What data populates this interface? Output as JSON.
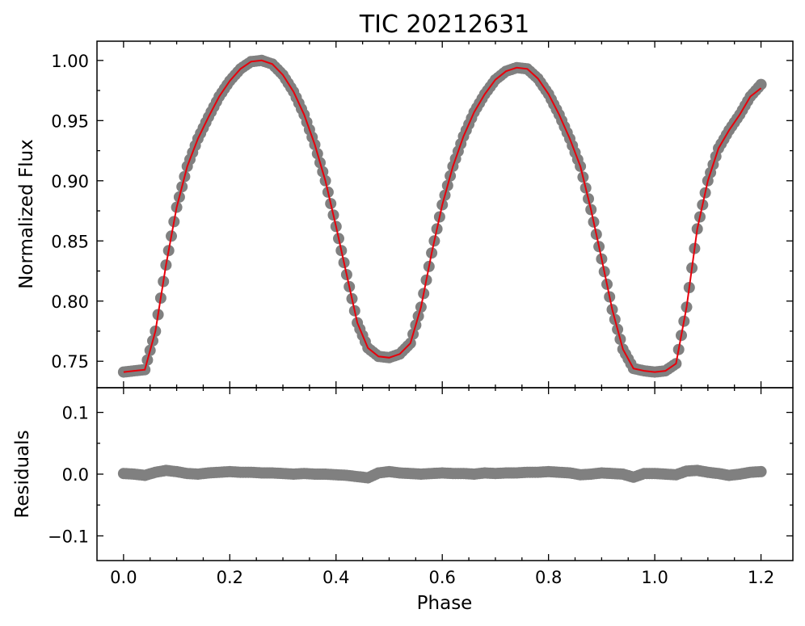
{
  "chart_data": [
    {
      "type": "scatter",
      "panel": "flux",
      "title": "TIC 20212631",
      "xlabel": "",
      "ylabel": "Normalized Flux",
      "xlim": [
        -0.05,
        1.26
      ],
      "ylim": [
        0.728,
        1.016
      ],
      "xticks": [
        0.0,
        0.2,
        0.4,
        0.6,
        0.8,
        1.0,
        1.2
      ],
      "xtick_labels": [
        "",
        "",
        "",
        "",
        "",
        "",
        ""
      ],
      "yticks": [
        0.75,
        0.8,
        0.85,
        0.9,
        0.95,
        1.0
      ],
      "ytick_labels": [
        "0.75",
        "0.80",
        "0.85",
        "0.90",
        "0.95",
        "1.00"
      ],
      "grid": false,
      "series": [
        {
          "kind": "scatter",
          "color": "#808080",
          "x": [
            0.0,
            0.02,
            0.04,
            0.06,
            0.08,
            0.1,
            0.12,
            0.14,
            0.16,
            0.18,
            0.2,
            0.22,
            0.24,
            0.26,
            0.28,
            0.3,
            0.32,
            0.34,
            0.36,
            0.38,
            0.4,
            0.42,
            0.44,
            0.46,
            0.48,
            0.5,
            0.52,
            0.54,
            0.56,
            0.58,
            0.6,
            0.62,
            0.64,
            0.66,
            0.68,
            0.7,
            0.72,
            0.74,
            0.76,
            0.78,
            0.8,
            0.82,
            0.84,
            0.86,
            0.88,
            0.9,
            0.92,
            0.94,
            0.96,
            0.98,
            1.0,
            1.02,
            1.04,
            1.06,
            1.08,
            1.1,
            1.12,
            1.14,
            1.16,
            1.18,
            1.2
          ],
          "y": [
            0.741,
            0.742,
            0.743,
            0.775,
            0.83,
            0.878,
            0.912,
            0.935,
            0.953,
            0.97,
            0.983,
            0.993,
            0.999,
            1.0,
            0.997,
            0.988,
            0.974,
            0.955,
            0.93,
            0.9,
            0.862,
            0.822,
            0.782,
            0.761,
            0.754,
            0.753,
            0.756,
            0.765,
            0.795,
            0.84,
            0.88,
            0.912,
            0.937,
            0.957,
            0.972,
            0.984,
            0.991,
            0.994,
            0.993,
            0.985,
            0.972,
            0.955,
            0.935,
            0.912,
            0.876,
            0.835,
            0.793,
            0.76,
            0.744,
            0.742,
            0.741,
            0.742,
            0.748,
            0.795,
            0.86,
            0.9,
            0.927,
            0.942,
            0.955,
            0.97,
            0.98
          ]
        },
        {
          "kind": "line",
          "color": "#e8000b",
          "x": [
            0.0,
            0.02,
            0.04,
            0.06,
            0.08,
            0.1,
            0.12,
            0.14,
            0.16,
            0.18,
            0.2,
            0.22,
            0.24,
            0.26,
            0.28,
            0.3,
            0.32,
            0.34,
            0.36,
            0.38,
            0.4,
            0.42,
            0.44,
            0.46,
            0.48,
            0.5,
            0.52,
            0.54,
            0.56,
            0.58,
            0.6,
            0.62,
            0.64,
            0.66,
            0.68,
            0.7,
            0.72,
            0.74,
            0.76,
            0.78,
            0.8,
            0.82,
            0.84,
            0.86,
            0.88,
            0.9,
            0.92,
            0.94,
            0.96,
            0.98,
            1.0,
            1.02,
            1.04,
            1.06,
            1.08,
            1.1,
            1.12,
            1.14,
            1.16,
            1.18,
            1.2
          ],
          "y": [
            0.741,
            0.742,
            0.743,
            0.775,
            0.83,
            0.878,
            0.912,
            0.935,
            0.953,
            0.97,
            0.983,
            0.993,
            0.999,
            1.0,
            0.997,
            0.988,
            0.974,
            0.955,
            0.93,
            0.9,
            0.862,
            0.822,
            0.782,
            0.761,
            0.754,
            0.753,
            0.756,
            0.765,
            0.795,
            0.84,
            0.88,
            0.912,
            0.937,
            0.957,
            0.972,
            0.984,
            0.991,
            0.994,
            0.993,
            0.985,
            0.972,
            0.955,
            0.935,
            0.912,
            0.876,
            0.835,
            0.793,
            0.76,
            0.744,
            0.742,
            0.741,
            0.742,
            0.748,
            0.795,
            0.86,
            0.9,
            0.927,
            0.942,
            0.955,
            0.97,
            0.977
          ]
        }
      ]
    },
    {
      "type": "scatter",
      "panel": "residuals",
      "title": "",
      "xlabel": "Phase",
      "ylabel": "Residuals",
      "xlim": [
        -0.05,
        1.26
      ],
      "ylim": [
        -0.14,
        0.14
      ],
      "xticks": [
        0.0,
        0.2,
        0.4,
        0.6,
        0.8,
        1.0,
        1.2
      ],
      "xtick_labels": [
        "0.0",
        "0.2",
        "0.4",
        "0.6",
        "0.8",
        "1.0",
        "1.2"
      ],
      "yticks": [
        -0.1,
        0.0,
        0.1
      ],
      "ytick_labels": [
        "−0.1",
        "0.0",
        "0.1"
      ],
      "grid": false,
      "series": [
        {
          "kind": "scatter",
          "color": "#808080",
          "x": [
            0.0,
            0.02,
            0.04,
            0.06,
            0.08,
            0.1,
            0.12,
            0.14,
            0.16,
            0.18,
            0.2,
            0.22,
            0.24,
            0.26,
            0.28,
            0.3,
            0.32,
            0.34,
            0.36,
            0.38,
            0.4,
            0.42,
            0.44,
            0.46,
            0.48,
            0.5,
            0.52,
            0.54,
            0.56,
            0.58,
            0.6,
            0.62,
            0.64,
            0.66,
            0.68,
            0.7,
            0.72,
            0.74,
            0.76,
            0.78,
            0.8,
            0.82,
            0.84,
            0.86,
            0.88,
            0.9,
            0.92,
            0.94,
            0.96,
            0.98,
            1.0,
            1.02,
            1.04,
            1.06,
            1.08,
            1.1,
            1.12,
            1.14,
            1.16,
            1.18,
            1.2
          ],
          "y": [
            0.001,
            0.0,
            -0.002,
            0.003,
            0.006,
            0.004,
            0.001,
            0.0,
            0.002,
            0.003,
            0.004,
            0.003,
            0.003,
            0.002,
            0.002,
            0.001,
            0.0,
            0.001,
            0.0,
            0.0,
            -0.001,
            -0.002,
            -0.004,
            -0.006,
            0.002,
            0.004,
            0.002,
            0.001,
            0.0,
            0.001,
            0.002,
            0.001,
            0.001,
            0.0,
            0.002,
            0.001,
            0.002,
            0.002,
            0.003,
            0.003,
            0.004,
            0.003,
            0.002,
            -0.001,
            0.0,
            0.002,
            0.001,
            0.0,
            -0.005,
            0.001,
            0.001,
            0.0,
            -0.001,
            0.005,
            0.006,
            0.003,
            0.001,
            -0.002,
            0.0,
            0.003,
            0.004
          ]
        }
      ]
    }
  ]
}
